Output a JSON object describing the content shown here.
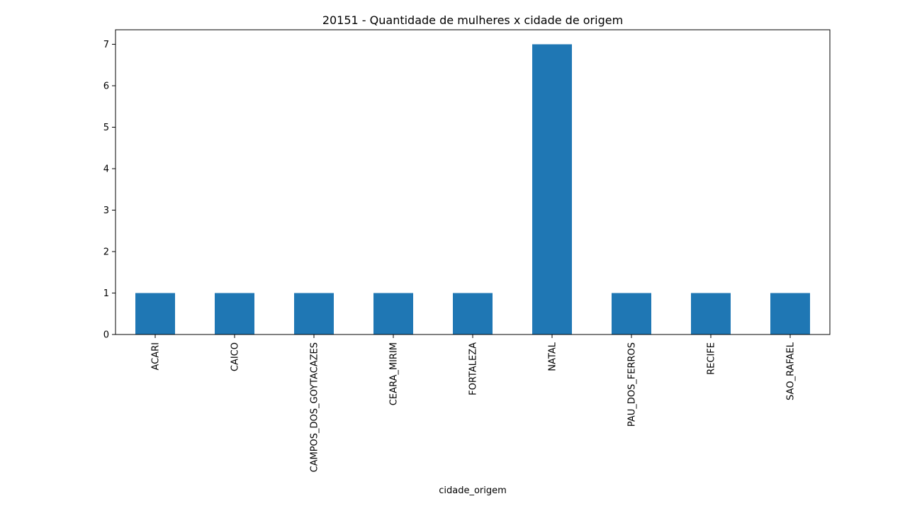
{
  "chart_data": {
    "type": "bar",
    "title": "20151 - Quantidade de mulheres x cidade de origem",
    "xlabel": "cidade_origem",
    "ylabel": "",
    "categories": [
      "ACARI",
      "CAICO",
      "CAMPOS_DOS_GOYTACAZES",
      "CEARA_MIRIM",
      "FORTALEZA",
      "NATAL",
      "PAU_DOS_FERROS",
      "RECIFE",
      "SAO_RAFAEL"
    ],
    "values": [
      1,
      1,
      1,
      1,
      1,
      7,
      1,
      1,
      1
    ],
    "ylim": [
      0,
      7.35
    ],
    "yticks": [
      0,
      1,
      2,
      3,
      4,
      5,
      6,
      7
    ],
    "bar_color": "#1f77b4",
    "grid": false,
    "legend": "none"
  }
}
